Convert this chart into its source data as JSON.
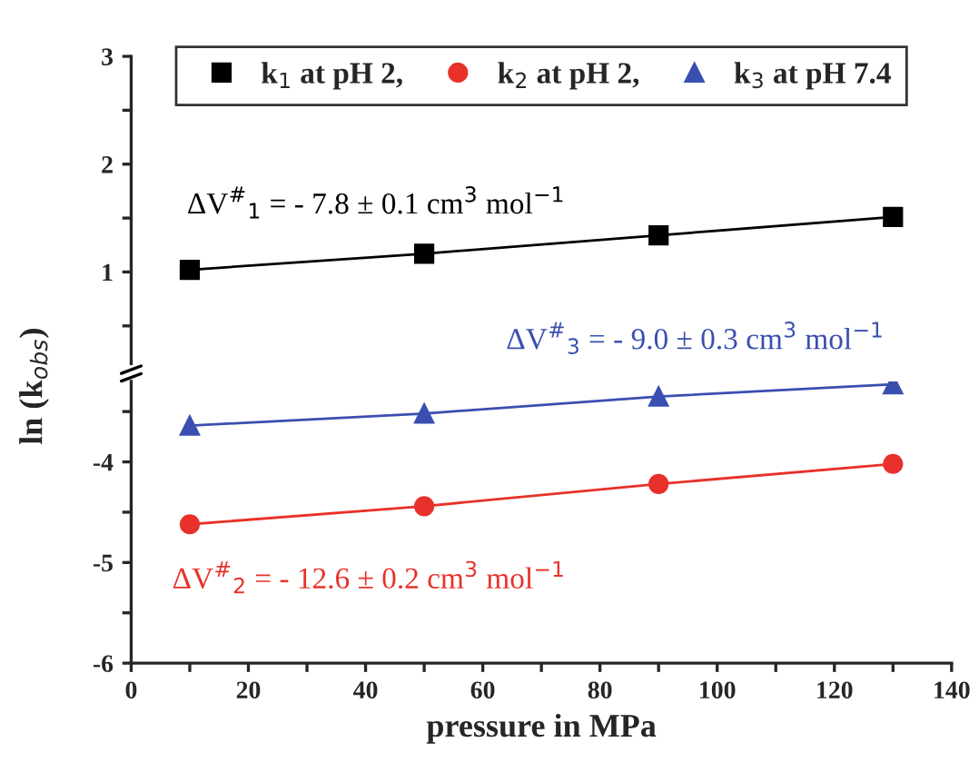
{
  "chart_data": [
    {
      "type": "line",
      "x": [
        10,
        50,
        90,
        130
      ],
      "xlim": [
        0,
        140
      ],
      "ylim": [
        0.15,
        3
      ],
      "yticks": [
        {
          "value": 0.5,
          "label": null
        },
        1,
        {
          "value": 1.5,
          "label": null
        },
        2,
        {
          "value": 2.5,
          "label": null
        },
        3
      ],
      "tick_labels": "y",
      "marker": "square",
      "legend": "top",
      "series": [
        {
          "name": "k$_{1}$ at pH 2,",
          "color": "#000000",
          "values": [
            1.02,
            1.17,
            1.34,
            1.51
          ]
        }
      ],
      "annotations": [
        "ΔV$^{#}$$_{1}$ = - 7.8 ± 0.1 cm$^{3}$ mol$^{−1}$"
      ]
    },
    {
      "type": "line",
      "x": [
        10,
        50,
        90,
        130
      ],
      "xlim": [
        0,
        140
      ],
      "xticks": [
        0,
        {
          "value": 10,
          "label": null
        },
        20,
        {
          "value": 30,
          "label": null
        },
        40,
        {
          "value": 50,
          "label": null
        },
        60,
        {
          "value": 70,
          "label": null
        },
        80,
        {
          "value": 90,
          "label": null
        },
        100,
        {
          "value": 110,
          "label": null
        },
        120,
        {
          "value": 130,
          "label": null
        },
        140
      ],
      "ylim": [
        -6,
        -3.2
      ],
      "yticks": [
        -6,
        {
          "value": -5.5,
          "label": null
        },
        -5,
        {
          "value": -4.5,
          "label": null
        },
        -4,
        {
          "value": -3.5,
          "label": null
        }
      ],
      "xlabel": "pressure in MPa",
      "ylabel": "ln (k$_{obs}$)",
      "series": [
        {
          "name": "k$_{2}$ at pH 2,",
          "color": "#e8312a",
          "marker": "circle",
          "values": [
            -4.62,
            -4.44,
            -4.22,
            -4.02
          ]
        },
        {
          "name": "k$_{3}$ at pH 7.4",
          "color": "#3a4fb0",
          "marker": "triangle",
          "values": [
            -3.64,
            -3.52,
            -3.35,
            -3.23
          ]
        }
      ],
      "legend": "top",
      "annotations": [
        "ΔV$^{#}$$_{2}$ = - 12.6 ± 0.2 cm$^{3}$ mol$^{−1}$",
        "ΔV$^{#}$$_{3}$ = - 9.0 ± 0.3 cm$^{3}$ mol$^{−1}$"
      ]
    }
  ]
}
